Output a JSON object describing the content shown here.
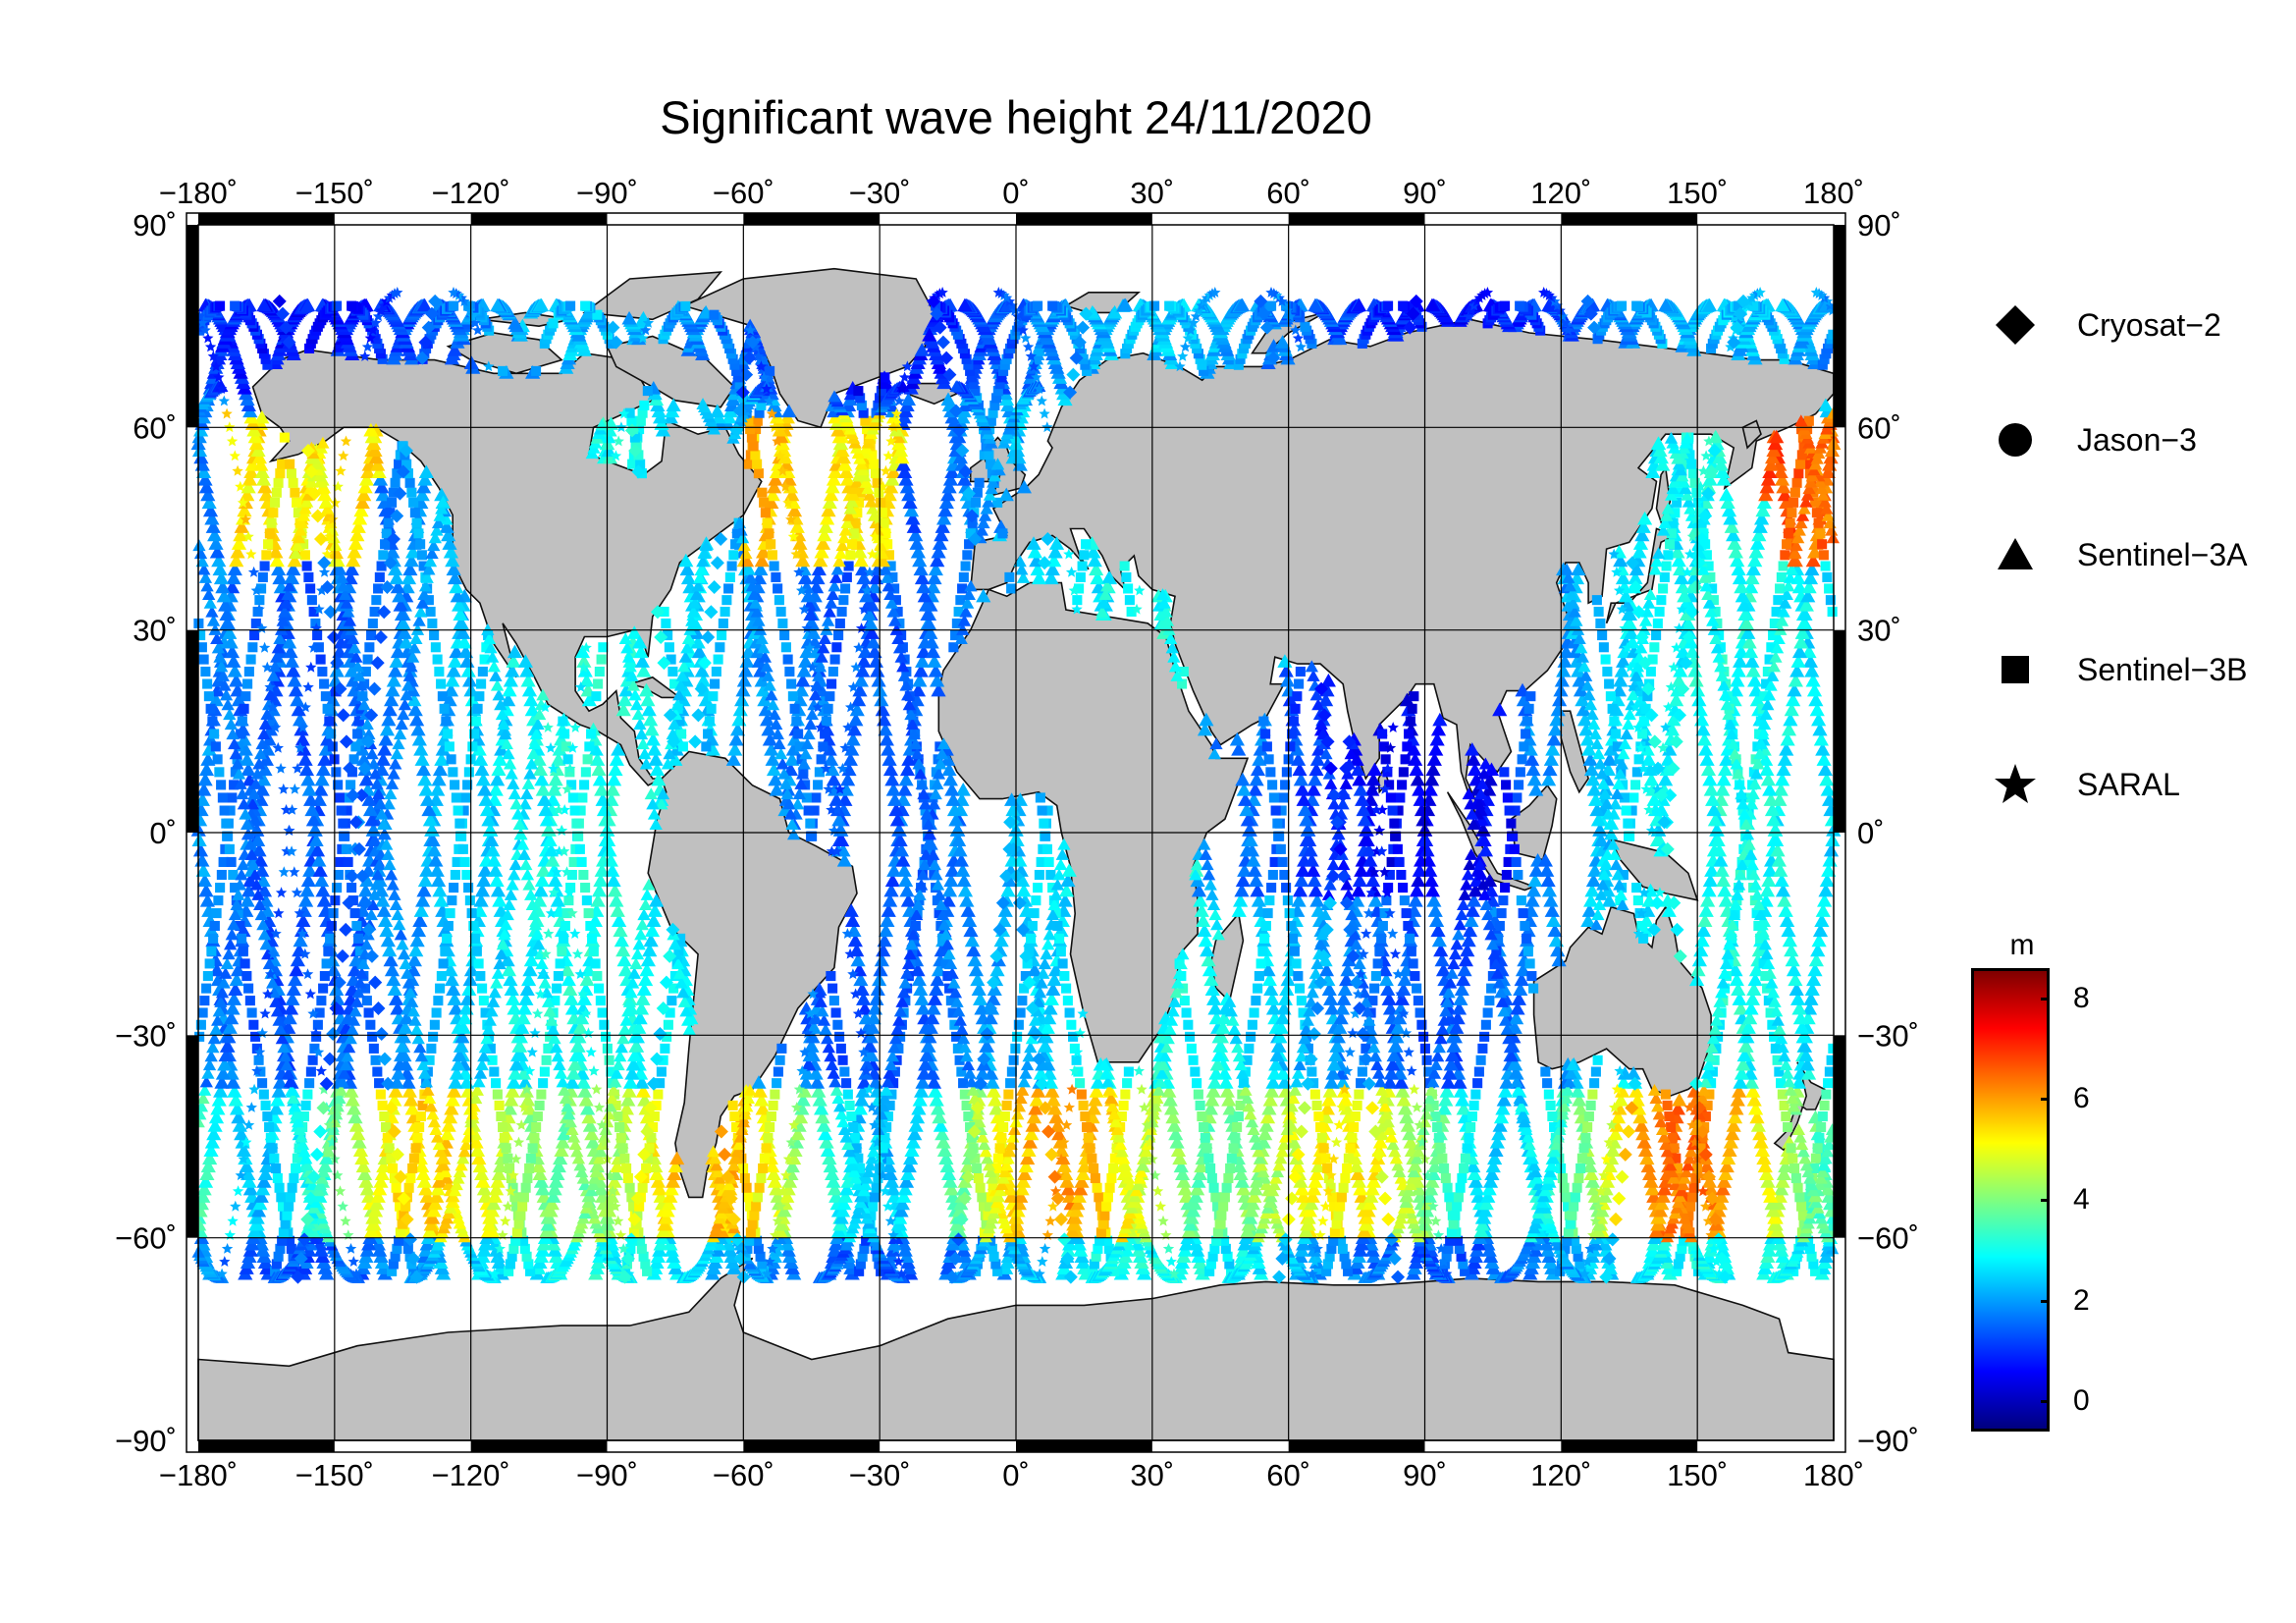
{
  "title": "Significant wave height 24/11/2020",
  "map": {
    "lon_ticks": [
      "−180˚",
      "−150˚",
      "−120˚",
      "−90˚",
      "−60˚",
      "−30˚",
      "0˚",
      "30˚",
      "60˚",
      "90˚",
      "120˚",
      "150˚",
      "180˚"
    ],
    "lat_ticks": [
      "90˚",
      "60˚",
      "30˚",
      "0˚",
      "−30˚",
      "−60˚",
      "−90˚"
    ],
    "lon_range": [
      -180,
      180
    ],
    "lat_range": [
      -90,
      90
    ],
    "grid": true,
    "land_color": "#c0c0c0",
    "ocean_color": "#ffffff"
  },
  "legend": {
    "placement": "right",
    "items": [
      {
        "label": "Cryosat−2",
        "icon": "diamond-icon"
      },
      {
        "label": "Jason−3",
        "icon": "circle-icon"
      },
      {
        "label": "Sentinel−3A",
        "icon": "triangle-icon"
      },
      {
        "label": "Sentinel−3B",
        "icon": "square-icon"
      },
      {
        "label": "SARAL",
        "icon": "star-icon"
      }
    ]
  },
  "colorbar": {
    "unit": "m",
    "ticks": [
      "8",
      "6",
      "4",
      "2",
      "0"
    ],
    "range": [
      -0.6,
      8.6
    ],
    "colormap": [
      "#00007f",
      "#0000ff",
      "#007fff",
      "#00ffff",
      "#7fff7f",
      "#ffff00",
      "#ff7f00",
      "#ff0000",
      "#7f0000"
    ]
  }
}
